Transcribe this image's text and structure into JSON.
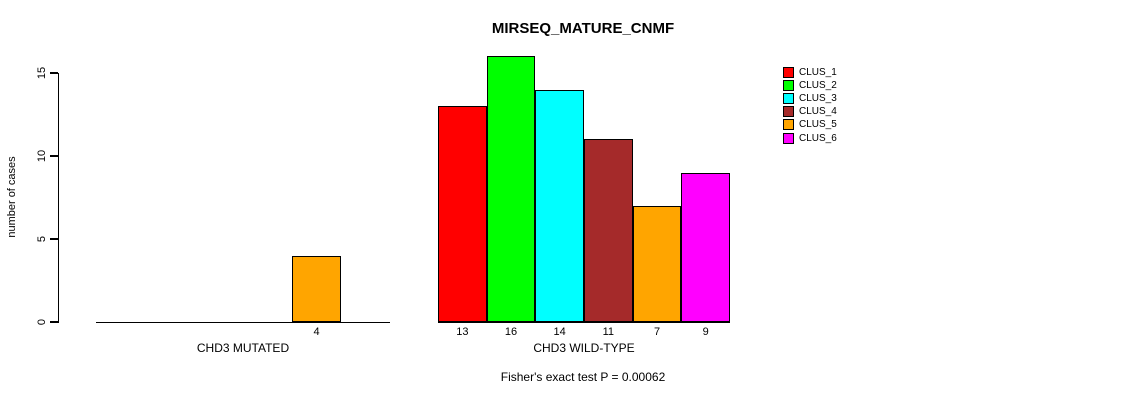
{
  "chart_data": {
    "type": "bar",
    "title": "MIRSEQ_MATURE_CNMF",
    "xlabel": "",
    "ylabel": "number of cases",
    "ylim": [
      0,
      15
    ],
    "yticks": [
      0,
      5,
      10,
      15
    ],
    "grid": false,
    "legend_position": "top-right",
    "bar_border_color": "#000000",
    "clusters": [
      {
        "name": "CLUS_1",
        "color": "#FF0000"
      },
      {
        "name": "CLUS_2",
        "color": "#00FF00"
      },
      {
        "name": "CLUS_3",
        "color": "#00FFFF"
      },
      {
        "name": "CLUS_4",
        "color": "#A52A2A"
      },
      {
        "name": "CLUS_5",
        "color": "#FFA500"
      },
      {
        "name": "CLUS_6",
        "color": "#FF00FF"
      }
    ],
    "groups": [
      {
        "label": "CHD3 MUTATED",
        "values": [
          0,
          0,
          0,
          0,
          4,
          0
        ]
      },
      {
        "label": "CHD3 WILD-TYPE",
        "values": [
          13,
          16,
          14,
          11,
          7,
          9
        ]
      }
    ],
    "caption": "Fisher's exact test P = 0.00062"
  }
}
